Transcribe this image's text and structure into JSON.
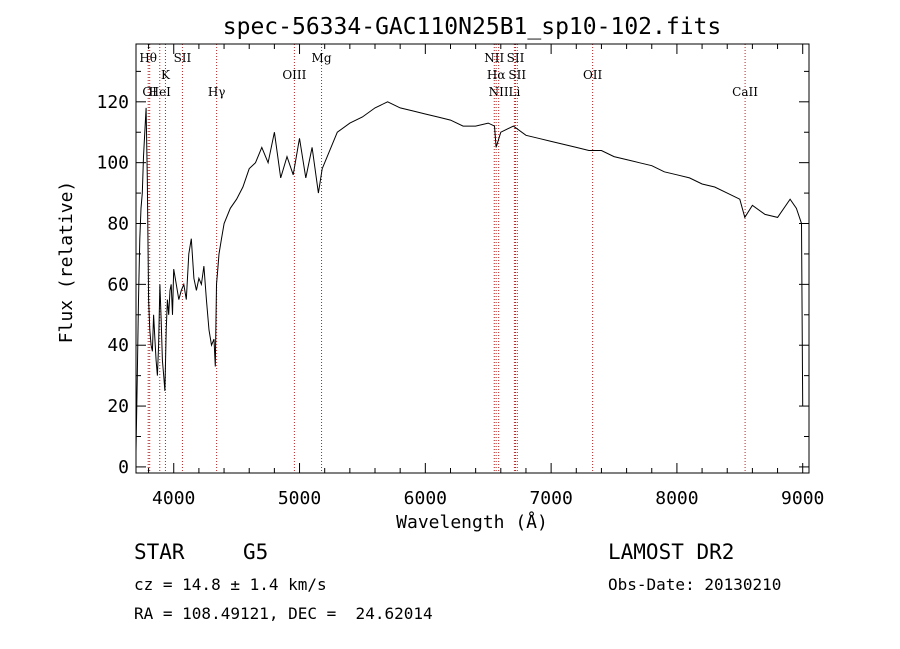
{
  "chart_data": {
    "type": "line",
    "title": "spec-56334-GAC110N25B1_sp10-102.fits",
    "xlabel": "Wavelength (Å)",
    "ylabel": "Flux (relative)",
    "xlim": [
      3700,
      9050
    ],
    "ylim": [
      -2,
      139
    ],
    "xticks": [
      4000,
      5000,
      6000,
      7000,
      8000,
      9000
    ],
    "yticks": [
      0,
      20,
      40,
      60,
      80,
      100,
      120
    ],
    "line_color": "#000000",
    "marker_color": "#b22222",
    "spectrum": {
      "x": [
        3700,
        3710,
        3720,
        3730,
        3740,
        3750,
        3760,
        3770,
        3780,
        3790,
        3800,
        3810,
        3820,
        3830,
        3840,
        3850,
        3860,
        3870,
        3880,
        3890,
        3900,
        3910,
        3920,
        3930,
        3940,
        3950,
        3960,
        3970,
        3980,
        3990,
        4000,
        4020,
        4040,
        4060,
        4080,
        4100,
        4120,
        4140,
        4160,
        4180,
        4200,
        4220,
        4240,
        4260,
        4280,
        4300,
        4320,
        4330,
        4340,
        4350,
        4360,
        4380,
        4400,
        4450,
        4500,
        4550,
        4600,
        4650,
        4700,
        4750,
        4800,
        4850,
        4900,
        4950,
        5000,
        5050,
        5100,
        5150,
        5180,
        5200,
        5250,
        5300,
        5400,
        5500,
        5600,
        5700,
        5800,
        5900,
        6000,
        6100,
        6200,
        6300,
        6400,
        6500,
        6550,
        6563,
        6600,
        6700,
        6800,
        6900,
        7000,
        7100,
        7200,
        7300,
        7400,
        7500,
        7600,
        7700,
        7800,
        7900,
        8000,
        8100,
        8200,
        8300,
        8400,
        8500,
        8540,
        8600,
        8700,
        8800,
        8900,
        8950,
        8990,
        9000
      ],
      "y": [
        5,
        30,
        55,
        75,
        85,
        90,
        102,
        110,
        118,
        95,
        55,
        45,
        40,
        38,
        50,
        42,
        35,
        30,
        40,
        60,
        48,
        35,
        30,
        25,
        45,
        55,
        50,
        58,
        60,
        50,
        65,
        60,
        55,
        58,
        60,
        55,
        70,
        75,
        62,
        58,
        62,
        60,
        66,
        55,
        45,
        40,
        42,
        33,
        60,
        65,
        70,
        75,
        80,
        85,
        88,
        92,
        98,
        100,
        105,
        100,
        110,
        95,
        102,
        96,
        108,
        95,
        105,
        90,
        98,
        100,
        105,
        110,
        113,
        115,
        118,
        120,
        118,
        117,
        116,
        115,
        114,
        112,
        112,
        113,
        112,
        105,
        110,
        112,
        109,
        108,
        107,
        106,
        105,
        104,
        104,
        102,
        101,
        100,
        99,
        97,
        96,
        95,
        93,
        92,
        90,
        88,
        82,
        86,
        83,
        82,
        88,
        85,
        80,
        20
      ]
    },
    "line_markers": [
      {
        "label": "Hθ",
        "x": 3797,
        "row": 1
      },
      {
        "label": "OI",
        "x": 3809,
        "row": 3
      },
      {
        "label": "K",
        "x": 3934,
        "row": 2
      },
      {
        "label": "HeI",
        "x": 3889,
        "row": 3
      },
      {
        "label": "SII",
        "x": 4069,
        "row": 1
      },
      {
        "label": "Hγ",
        "x": 4341,
        "row": 3
      },
      {
        "label": "OIII",
        "x": 4959,
        "row": 2
      },
      {
        "label": "Mg",
        "x": 5175,
        "row": 1
      },
      {
        "label": "NII",
        "x": 6548,
        "row": 1
      },
      {
        "label": "SII",
        "x": 6717,
        "row": 1
      },
      {
        "label": "Hα",
        "x": 6563,
        "row": 2
      },
      {
        "label": "SII",
        "x": 6731,
        "row": 2
      },
      {
        "label": "NII",
        "x": 6583,
        "row": 3
      },
      {
        "label": "Li",
        "x": 6708,
        "row": 3
      },
      {
        "label": "OII",
        "x": 7330,
        "row": 2
      },
      {
        "label": "CaII",
        "x": 8542,
        "row": 3
      }
    ]
  },
  "info": {
    "object_class": "STAR",
    "subclass": "G5",
    "survey": "LAMOST DR2",
    "redshift": "cz = 14.8 ± 1.4 km/s",
    "obs_date": "Obs-Date: 20130210",
    "coords": "RA = 108.49121, DEC =  24.62014"
  }
}
